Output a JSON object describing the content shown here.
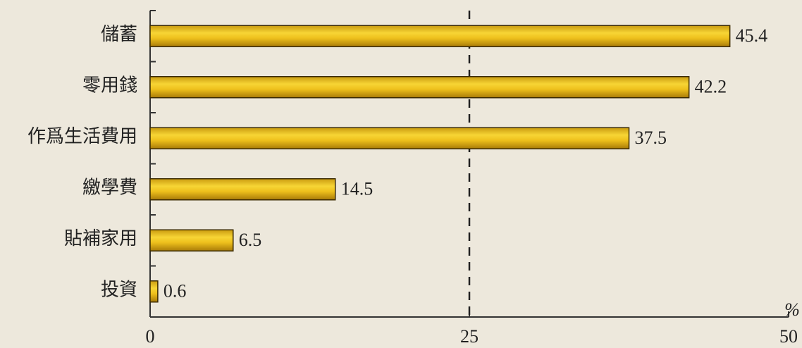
{
  "chart_data": {
    "type": "hbar",
    "categories": [
      "儲蓄",
      "零用錢",
      "作爲生活費用",
      "繳學費",
      "貼補家用",
      "投資"
    ],
    "values": [
      45.4,
      42.2,
      37.5,
      14.5,
      6.5,
      0.6
    ],
    "color": "#f0c21e",
    "xlim": [
      0,
      50
    ],
    "xticks": [
      0,
      25,
      50
    ],
    "x_label": "%",
    "reference_line": 25
  }
}
